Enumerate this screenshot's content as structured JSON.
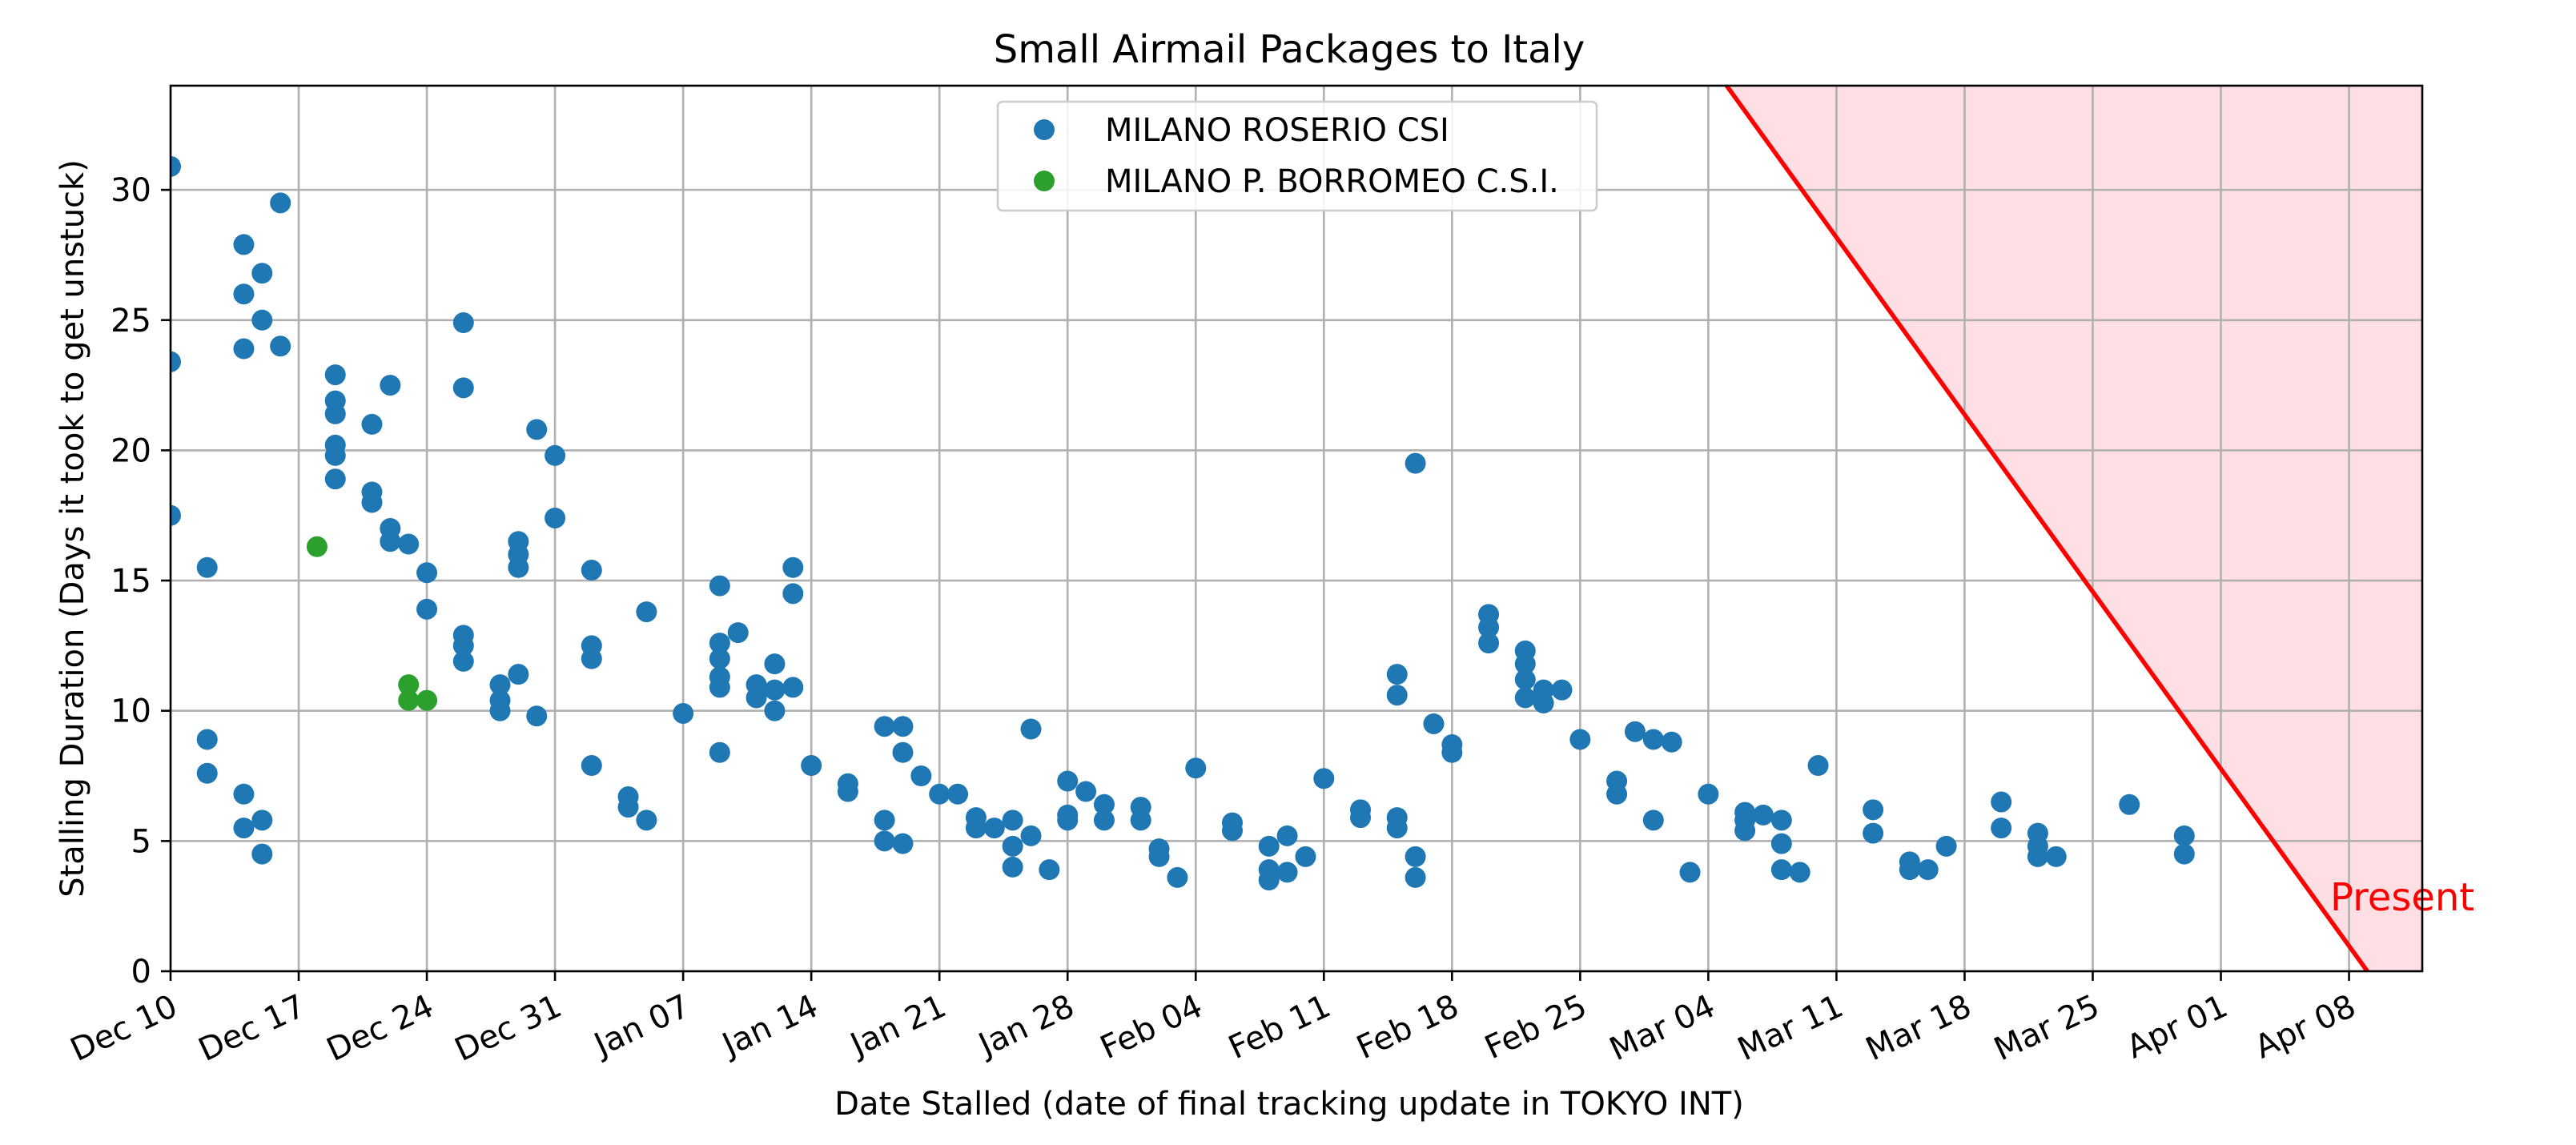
{
  "chart_data": {
    "type": "scatter",
    "title": "Small Airmail Packages to Italy",
    "xlabel": "Date Stalled (date of final tracking update in TOKYO INT)",
    "ylabel": "Stalling Duration (Days it took to get unstuck)",
    "x_type": "date",
    "xlim": [
      "2022-12-10",
      "2023-04-12"
    ],
    "ylim": [
      0,
      34
    ],
    "x_ticks": [
      {
        "x": "2022-12-10",
        "label": "Dec 10"
      },
      {
        "x": "2022-12-17",
        "label": "Dec 17"
      },
      {
        "x": "2022-12-24",
        "label": "Dec 24"
      },
      {
        "x": "2022-12-31",
        "label": "Dec 31"
      },
      {
        "x": "2023-01-07",
        "label": "Jan 07"
      },
      {
        "x": "2023-01-14",
        "label": "Jan 14"
      },
      {
        "x": "2023-01-21",
        "label": "Jan 21"
      },
      {
        "x": "2023-01-28",
        "label": "Jan 28"
      },
      {
        "x": "2023-02-04",
        "label": "Feb 04"
      },
      {
        "x": "2023-02-11",
        "label": "Feb 11"
      },
      {
        "x": "2023-02-18",
        "label": "Feb 18"
      },
      {
        "x": "2023-02-25",
        "label": "Feb 25"
      },
      {
        "x": "2023-03-04",
        "label": "Mar 04"
      },
      {
        "x": "2023-03-11",
        "label": "Mar 11"
      },
      {
        "x": "2023-03-18",
        "label": "Mar 18"
      },
      {
        "x": "2023-03-25",
        "label": "Mar 25"
      },
      {
        "x": "2023-04-01",
        "label": "Apr 01"
      },
      {
        "x": "2023-04-08",
        "label": "Apr 08"
      }
    ],
    "y_ticks": [
      {
        "y": 0,
        "label": "0"
      },
      {
        "y": 5,
        "label": "5"
      },
      {
        "y": 10,
        "label": "10"
      },
      {
        "y": 15,
        "label": "15"
      },
      {
        "y": 20,
        "label": "20"
      },
      {
        "y": 25,
        "label": "25"
      },
      {
        "y": 30,
        "label": "30"
      }
    ],
    "grid": true,
    "legend_position": "top-center",
    "series": [
      {
        "name": "MILANO ROSERIO CSI",
        "color": "#1f77b4",
        "points": [
          [
            "2022-12-10",
            30.9
          ],
          [
            "2022-12-10",
            23.4
          ],
          [
            "2022-12-10",
            17.5
          ],
          [
            "2022-12-12",
            15.5
          ],
          [
            "2022-12-12",
            8.9
          ],
          [
            "2022-12-12",
            7.6
          ],
          [
            "2022-12-14",
            27.9
          ],
          [
            "2022-12-14",
            26.0
          ],
          [
            "2022-12-14",
            23.9
          ],
          [
            "2022-12-14",
            6.8
          ],
          [
            "2022-12-14",
            5.5
          ],
          [
            "2022-12-15",
            26.8
          ],
          [
            "2022-12-15",
            25.0
          ],
          [
            "2022-12-15",
            4.5
          ],
          [
            "2022-12-15",
            5.8
          ],
          [
            "2022-12-16",
            24.0
          ],
          [
            "2022-12-16",
            29.5
          ],
          [
            "2022-12-19",
            22.9
          ],
          [
            "2022-12-19",
            21.9
          ],
          [
            "2022-12-19",
            21.4
          ],
          [
            "2022-12-19",
            20.2
          ],
          [
            "2022-12-19",
            19.8
          ],
          [
            "2022-12-19",
            18.9
          ],
          [
            "2022-12-21",
            21.0
          ],
          [
            "2022-12-21",
            18.4
          ],
          [
            "2022-12-21",
            18.0
          ],
          [
            "2022-12-22",
            22.5
          ],
          [
            "2022-12-22",
            17.0
          ],
          [
            "2022-12-22",
            16.5
          ],
          [
            "2022-12-23",
            16.4
          ],
          [
            "2022-12-24",
            15.3
          ],
          [
            "2022-12-24",
            13.9
          ],
          [
            "2022-12-26",
            24.9
          ],
          [
            "2022-12-26",
            22.4
          ],
          [
            "2022-12-26",
            12.9
          ],
          [
            "2022-12-26",
            12.5
          ],
          [
            "2022-12-26",
            11.9
          ],
          [
            "2022-12-28",
            11.0
          ],
          [
            "2022-12-28",
            10.4
          ],
          [
            "2022-12-28",
            10.0
          ],
          [
            "2022-12-29",
            16.0
          ],
          [
            "2022-12-29",
            15.5
          ],
          [
            "2022-12-29",
            11.4
          ],
          [
            "2022-12-29",
            16.5
          ],
          [
            "2022-12-30",
            20.8
          ],
          [
            "2022-12-30",
            9.8
          ],
          [
            "2022-12-31",
            19.8
          ],
          [
            "2022-12-31",
            17.4
          ],
          [
            "2023-01-02",
            15.4
          ],
          [
            "2023-01-02",
            12.5
          ],
          [
            "2023-01-02",
            12.0
          ],
          [
            "2023-01-02",
            7.9
          ],
          [
            "2023-01-04",
            6.7
          ],
          [
            "2023-01-04",
            6.3
          ],
          [
            "2023-01-05",
            13.8
          ],
          [
            "2023-01-05",
            5.8
          ],
          [
            "2023-01-07",
            9.9
          ],
          [
            "2023-01-09",
            14.8
          ],
          [
            "2023-01-09",
            12.6
          ],
          [
            "2023-01-09",
            12.0
          ],
          [
            "2023-01-09",
            11.3
          ],
          [
            "2023-01-09",
            10.9
          ],
          [
            "2023-01-09",
            8.4
          ],
          [
            "2023-01-10",
            13.0
          ],
          [
            "2023-01-11",
            11.0
          ],
          [
            "2023-01-11",
            10.5
          ],
          [
            "2023-01-12",
            11.8
          ],
          [
            "2023-01-12",
            10.8
          ],
          [
            "2023-01-12",
            10.0
          ],
          [
            "2023-01-13",
            15.5
          ],
          [
            "2023-01-13",
            14.5
          ],
          [
            "2023-01-13",
            10.9
          ],
          [
            "2023-01-14",
            7.9
          ],
          [
            "2023-01-16",
            7.2
          ],
          [
            "2023-01-16",
            6.9
          ],
          [
            "2023-01-18",
            9.4
          ],
          [
            "2023-01-18",
            5.8
          ],
          [
            "2023-01-18",
            5.0
          ],
          [
            "2023-01-19",
            9.4
          ],
          [
            "2023-01-19",
            8.4
          ],
          [
            "2023-01-19",
            4.9
          ],
          [
            "2023-01-20",
            7.5
          ],
          [
            "2023-01-21",
            6.8
          ],
          [
            "2023-01-22",
            6.8
          ],
          [
            "2023-01-23",
            5.9
          ],
          [
            "2023-01-23",
            5.5
          ],
          [
            "2023-01-24",
            5.5
          ],
          [
            "2023-01-25",
            5.8
          ],
          [
            "2023-01-25",
            4.8
          ],
          [
            "2023-01-25",
            4.0
          ],
          [
            "2023-01-26",
            9.3
          ],
          [
            "2023-01-26",
            5.2
          ],
          [
            "2023-01-27",
            3.9
          ],
          [
            "2023-01-28",
            7.3
          ],
          [
            "2023-01-28",
            6.0
          ],
          [
            "2023-01-28",
            5.8
          ],
          [
            "2023-01-29",
            6.9
          ],
          [
            "2023-01-30",
            6.4
          ],
          [
            "2023-01-30",
            5.8
          ],
          [
            "2023-02-01",
            6.3
          ],
          [
            "2023-02-01",
            5.8
          ],
          [
            "2023-02-02",
            4.7
          ],
          [
            "2023-02-02",
            4.4
          ],
          [
            "2023-02-03",
            3.6
          ],
          [
            "2023-02-04",
            7.8
          ],
          [
            "2023-02-06",
            5.7
          ],
          [
            "2023-02-06",
            5.4
          ],
          [
            "2023-02-08",
            4.8
          ],
          [
            "2023-02-08",
            3.9
          ],
          [
            "2023-02-08",
            3.5
          ],
          [
            "2023-02-09",
            5.2
          ],
          [
            "2023-02-09",
            3.8
          ],
          [
            "2023-02-10",
            4.4
          ],
          [
            "2023-02-11",
            7.4
          ],
          [
            "2023-02-13",
            6.2
          ],
          [
            "2023-02-13",
            5.9
          ],
          [
            "2023-02-15",
            11.4
          ],
          [
            "2023-02-15",
            10.6
          ],
          [
            "2023-02-15",
            5.9
          ],
          [
            "2023-02-15",
            5.5
          ],
          [
            "2023-02-16",
            19.5
          ],
          [
            "2023-02-16",
            4.4
          ],
          [
            "2023-02-16",
            3.6
          ],
          [
            "2023-02-17",
            9.5
          ],
          [
            "2023-02-18",
            8.7
          ],
          [
            "2023-02-18",
            8.4
          ],
          [
            "2023-02-20",
            13.7
          ],
          [
            "2023-02-20",
            13.2
          ],
          [
            "2023-02-20",
            12.6
          ],
          [
            "2023-02-22",
            12.3
          ],
          [
            "2023-02-22",
            11.8
          ],
          [
            "2023-02-22",
            11.2
          ],
          [
            "2023-02-22",
            10.5
          ],
          [
            "2023-02-23",
            10.8
          ],
          [
            "2023-02-23",
            10.3
          ],
          [
            "2023-02-24",
            10.8
          ],
          [
            "2023-02-25",
            8.9
          ],
          [
            "2023-02-27",
            7.3
          ],
          [
            "2023-02-27",
            6.8
          ],
          [
            "2023-02-28",
            9.2
          ],
          [
            "2023-03-01",
            8.9
          ],
          [
            "2023-03-01",
            5.8
          ],
          [
            "2023-03-02",
            8.8
          ],
          [
            "2023-03-03",
            3.8
          ],
          [
            "2023-03-04",
            6.8
          ],
          [
            "2023-03-06",
            6.1
          ],
          [
            "2023-03-06",
            5.8
          ],
          [
            "2023-03-06",
            5.4
          ],
          [
            "2023-03-07",
            6.0
          ],
          [
            "2023-03-08",
            5.8
          ],
          [
            "2023-03-08",
            4.9
          ],
          [
            "2023-03-08",
            3.9
          ],
          [
            "2023-03-09",
            3.8
          ],
          [
            "2023-03-10",
            7.9
          ],
          [
            "2023-03-13",
            6.2
          ],
          [
            "2023-03-13",
            5.3
          ],
          [
            "2023-03-15",
            4.2
          ],
          [
            "2023-03-15",
            3.9
          ],
          [
            "2023-03-16",
            3.9
          ],
          [
            "2023-03-17",
            4.8
          ],
          [
            "2023-03-20",
            6.5
          ],
          [
            "2023-03-20",
            5.5
          ],
          [
            "2023-03-22",
            5.3
          ],
          [
            "2023-03-22",
            4.8
          ],
          [
            "2023-03-22",
            4.4
          ],
          [
            "2023-03-23",
            4.4
          ],
          [
            "2023-03-27",
            6.4
          ],
          [
            "2023-03-30",
            5.2
          ],
          [
            "2023-03-30",
            4.5
          ]
        ]
      },
      {
        "name": "MILANO P. BORROMEO C.S.I.",
        "color": "#2ca02c",
        "points": [
          [
            "2022-12-18",
            16.3
          ],
          [
            "2022-12-23",
            11.0
          ],
          [
            "2022-12-23",
            10.4
          ],
          [
            "2022-12-24",
            10.4
          ]
        ]
      }
    ],
    "annotation": {
      "text": "Present",
      "color": "#ff0000",
      "line_color": "#ff0000",
      "shade_color": "#ffdfe3",
      "line_points": [
        [
          "2023-03-05",
          34
        ],
        [
          "2023-04-09",
          0
        ]
      ]
    }
  }
}
